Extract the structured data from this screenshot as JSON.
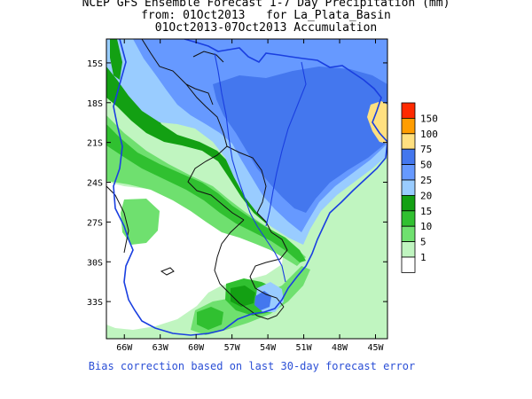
{
  "title": {
    "line1": "NCEP GFS Ensemble Forecast 1-7 Day Precipitation (mm)",
    "line2": "from: 01Oct2013   for La_Plata_Basin",
    "line3": "01Oct2013-07Oct2013 Accumulation"
  },
  "map": {
    "lat_labels": [
      "15S",
      "18S",
      "21S",
      "24S",
      "27S",
      "30S",
      "33S"
    ],
    "lon_labels": [
      "66W",
      "63W",
      "60W",
      "57W",
      "54W",
      "51W",
      "48W",
      "45W"
    ],
    "lat_values": [
      -15,
      -18,
      -21,
      -24,
      -27,
      -30,
      -33
    ],
    "lon_values": [
      -66,
      -63,
      -60,
      -57,
      -54,
      -51,
      -48,
      -45
    ],
    "extent": {
      "lon_min": -67.5,
      "lon_max": -44,
      "lat_min": -35.8,
      "lat_max": -13.2
    }
  },
  "legend": {
    "levels": [
      {
        "label": "150",
        "color": "#ff2a00"
      },
      {
        "label": "100",
        "color": "#ff9d00"
      },
      {
        "label": "75",
        "color": "#ffe080"
      },
      {
        "label": "50",
        "color": "#4477ee"
      },
      {
        "label": "25",
        "color": "#6699ff"
      },
      {
        "label": "20",
        "color": "#99ccff"
      },
      {
        "label": "15",
        "color": "#13a013"
      },
      {
        "label": "10",
        "color": "#30c030"
      },
      {
        "label": "5",
        "color": "#6fe06f"
      },
      {
        "label": "1",
        "color": "#c0f5c0"
      },
      {
        "label": "",
        "color": "#ffffff"
      }
    ]
  },
  "footer": "Bias correction based on last 30-day forecast error"
}
